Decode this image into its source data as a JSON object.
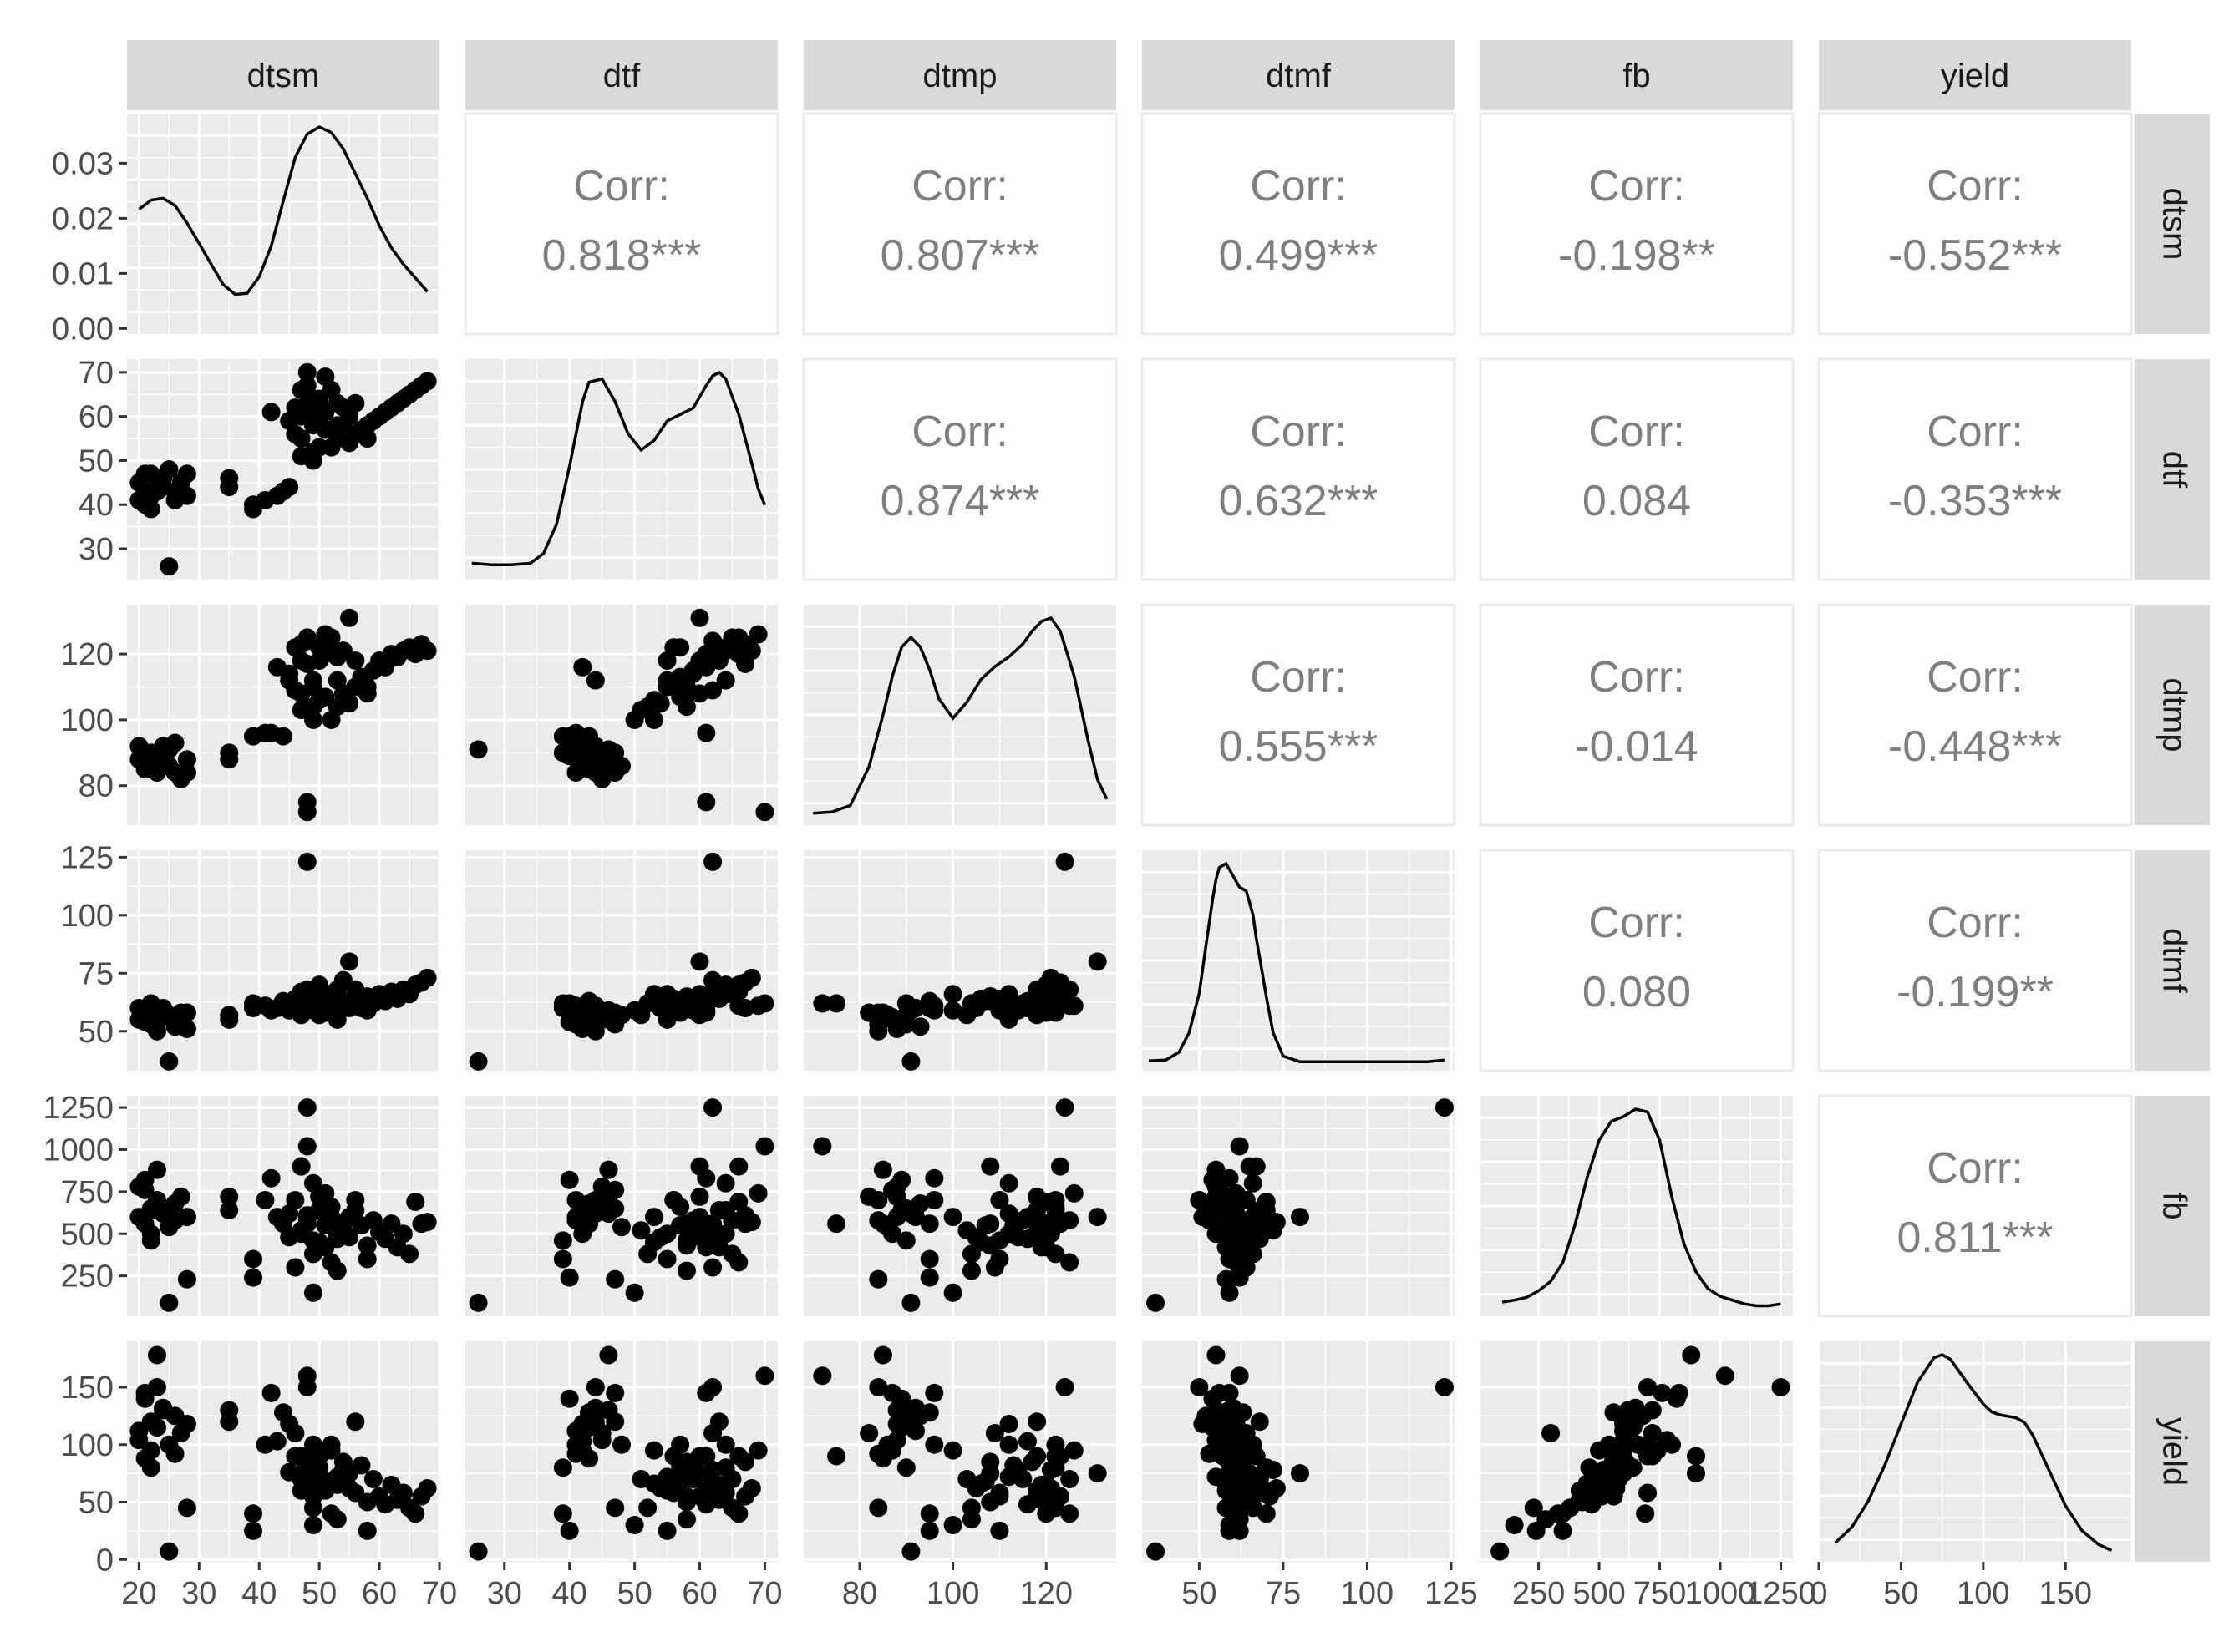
{
  "chart_data": {
    "type": "scatter",
    "subtype": "pairs-matrix",
    "variables": [
      "dtsm",
      "dtf",
      "dtmp",
      "dtmf",
      "fb",
      "yield"
    ],
    "panel_background": "#ebebeb",
    "strip_background": "#d9d9d9",
    "point_color": "#000000",
    "corr_text_color": "#7f7f7f",
    "corr_label": "Corr:",
    "correlations": [
      {
        "row": "dtsm",
        "col": "dtf",
        "text": "0.818***"
      },
      {
        "row": "dtsm",
        "col": "dtmp",
        "text": "0.807***"
      },
      {
        "row": "dtsm",
        "col": "dtmf",
        "text": "0.499***"
      },
      {
        "row": "dtsm",
        "col": "fb",
        "text": "-0.198**"
      },
      {
        "row": "dtsm",
        "col": "yield",
        "text": "-0.552***"
      },
      {
        "row": "dtf",
        "col": "dtmp",
        "text": "0.874***"
      },
      {
        "row": "dtf",
        "col": "dtmf",
        "text": "0.632***"
      },
      {
        "row": "dtf",
        "col": "fb",
        "text": "0.084"
      },
      {
        "row": "dtf",
        "col": "yield",
        "text": "-0.353***"
      },
      {
        "row": "dtmp",
        "col": "dtmf",
        "text": "0.555***"
      },
      {
        "row": "dtmp",
        "col": "fb",
        "text": "-0.014"
      },
      {
        "row": "dtmp",
        "col": "yield",
        "text": "-0.448***"
      },
      {
        "row": "dtmf",
        "col": "fb",
        "text": "0.080"
      },
      {
        "row": "dtmf",
        "col": "yield",
        "text": "-0.199**"
      },
      {
        "row": "fb",
        "col": "yield",
        "text": "0.811***"
      }
    ],
    "x_axes": [
      {
        "var": "dtsm",
        "lim": [
          18,
          70
        ],
        "ticks": [
          20,
          30,
          40,
          50,
          60,
          70
        ]
      },
      {
        "var": "dtf",
        "lim": [
          24,
          72
        ],
        "ticks": [
          30,
          40,
          50,
          60,
          70
        ]
      },
      {
        "var": "dtmp",
        "lim": [
          68,
          135
        ],
        "ticks": [
          80,
          100,
          120
        ]
      },
      {
        "var": "dtmf",
        "lim": [
          33,
          126
        ],
        "ticks": [
          50,
          75,
          100,
          125
        ]
      },
      {
        "var": "fb",
        "lim": [
          10,
          1300
        ],
        "ticks": [
          250,
          500,
          750,
          1000,
          1250
        ]
      },
      {
        "var": "yield",
        "lim": [
          0,
          190
        ],
        "ticks": [
          0,
          50,
          100,
          150
        ]
      }
    ],
    "y_axes": [
      {
        "var": "dtsm",
        "lim": [
          -0.001,
          0.039
        ],
        "ticks": [
          0.0,
          0.01,
          0.02,
          0.03
        ],
        "tick_labels": [
          "0.00",
          "0.01",
          "0.02",
          "0.03"
        ]
      },
      {
        "var": "dtf",
        "lim": [
          23,
          73
        ],
        "ticks": [
          30,
          40,
          50,
          60,
          70
        ]
      },
      {
        "var": "dtmp",
        "lim": [
          68,
          135
        ],
        "ticks": [
          80,
          100,
          120
        ]
      },
      {
        "var": "dtmf",
        "lim": [
          33,
          128
        ],
        "ticks": [
          50,
          75,
          100,
          125
        ]
      },
      {
        "var": "fb",
        "lim": [
          10,
          1320
        ],
        "ticks": [
          250,
          500,
          750,
          1000,
          1250
        ]
      },
      {
        "var": "yield",
        "lim": [
          -2,
          190
        ],
        "ticks": [
          0,
          50,
          100,
          150
        ]
      }
    ],
    "densities": [
      {
        "var": "dtsm",
        "x": [
          20,
          22,
          24,
          26,
          28,
          30,
          32,
          34,
          36,
          38,
          40,
          42,
          44,
          46,
          48,
          50,
          52,
          54,
          56,
          58,
          60,
          62,
          64,
          66,
          68
        ],
        "y": [
          0.0215,
          0.0232,
          0.0235,
          0.0222,
          0.019,
          0.0153,
          0.0115,
          0.0078,
          0.006,
          0.0062,
          0.0092,
          0.0148,
          0.023,
          0.031,
          0.0352,
          0.0365,
          0.0355,
          0.0325,
          0.028,
          0.0235,
          0.0185,
          0.0145,
          0.0115,
          0.009,
          0.0065
        ]
      },
      {
        "var": "dtf",
        "x": [
          25,
          28,
          31,
          34,
          36,
          38,
          40,
          42,
          43,
          45,
          47,
          49,
          51,
          53,
          55,
          57,
          59,
          61,
          62,
          63,
          64,
          66,
          68,
          69,
          70
        ],
        "y": [
          0.003,
          0.0025,
          0.0025,
          0.003,
          0.006,
          0.015,
          0.033,
          0.053,
          0.059,
          0.06,
          0.053,
          0.043,
          0.038,
          0.041,
          0.047,
          0.049,
          0.051,
          0.058,
          0.061,
          0.062,
          0.06,
          0.049,
          0.034,
          0.026,
          0.021
        ]
      },
      {
        "var": "dtmp",
        "x": [
          70,
          74,
          78,
          82,
          85,
          87,
          89,
          91,
          93,
          95,
          97,
          100,
          103,
          106,
          109,
          112,
          115,
          117,
          119,
          121,
          123,
          126,
          129,
          131,
          133
        ],
        "y": [
          0.0008,
          0.001,
          0.002,
          0.008,
          0.016,
          0.022,
          0.0265,
          0.028,
          0.0265,
          0.023,
          0.0185,
          0.0155,
          0.018,
          0.0215,
          0.0235,
          0.025,
          0.027,
          0.029,
          0.0305,
          0.031,
          0.029,
          0.022,
          0.012,
          0.006,
          0.003
        ]
      },
      {
        "var": "dtmf",
        "x": [
          35,
          40,
          44,
          47,
          50,
          52,
          54,
          55,
          56,
          58,
          60,
          62,
          64,
          66,
          67,
          68,
          70,
          72,
          75,
          80,
          90,
          100,
          110,
          118,
          123
        ],
        "y": [
          0.0008,
          0.001,
          0.003,
          0.008,
          0.018,
          0.03,
          0.042,
          0.047,
          0.05,
          0.051,
          0.048,
          0.045,
          0.044,
          0.038,
          0.032,
          0.027,
          0.017,
          0.008,
          0.002,
          0.0006,
          0.0006,
          0.0006,
          0.0006,
          0.0006,
          0.001
        ]
      },
      {
        "var": "fb",
        "x": [
          100,
          150,
          200,
          250,
          300,
          350,
          400,
          450,
          500,
          550,
          600,
          650,
          700,
          750,
          800,
          850,
          900,
          950,
          1000,
          1050,
          1100,
          1150,
          1200,
          1250
        ],
        "y": [
          8e-05,
          0.0001,
          0.00013,
          0.0002,
          0.0003,
          0.0005,
          0.0009,
          0.0014,
          0.0018,
          0.002,
          0.00205,
          0.00213,
          0.0021,
          0.0018,
          0.0012,
          0.0007,
          0.0004,
          0.00022,
          0.00014,
          0.0001,
          6e-05,
          4e-05,
          4e-05,
          6e-05
        ]
      },
      {
        "var": "yield",
        "x": [
          10,
          20,
          30,
          40,
          50,
          60,
          70,
          75,
          80,
          90,
          100,
          105,
          110,
          115,
          120,
          125,
          130,
          140,
          150,
          160,
          170,
          178
        ],
        "y": [
          0.0008,
          0.0018,
          0.0035,
          0.0058,
          0.0085,
          0.0112,
          0.0128,
          0.013,
          0.0127,
          0.0112,
          0.0098,
          0.0093,
          0.0091,
          0.009,
          0.0089,
          0.0086,
          0.0078,
          0.0055,
          0.0032,
          0.0016,
          0.0007,
          0.0003
        ]
      }
    ],
    "observations": [
      {
        "dtsm": 20,
        "dtf": 45,
        "dtmp": 88,
        "dtmf": 55,
        "fb": 780,
        "yield": 104
      },
      {
        "dtsm": 21,
        "dtf": 43,
        "dtmp": 85,
        "dtmf": 58,
        "fb": 560,
        "yield": 88
      },
      {
        "dtsm": 22,
        "dtf": 47,
        "dtmp": 90,
        "dtmf": 53,
        "fb": 650,
        "yield": 120
      },
      {
        "dtsm": 20,
        "dtf": 41,
        "dtmp": 92,
        "dtmf": 60,
        "fb": 600,
        "yield": 112
      },
      {
        "dtsm": 23,
        "dtf": 44,
        "dtmp": 84,
        "dtmf": 50,
        "fb": 700,
        "yield": 150
      },
      {
        "dtsm": 22,
        "dtf": 42,
        "dtmp": 87,
        "dtmf": 56,
        "fb": 500,
        "yield": 95
      },
      {
        "dtsm": 24,
        "dtf": 46,
        "dtmp": 91,
        "dtmf": 59,
        "fb": 620,
        "yield": 130
      },
      {
        "dtsm": 21,
        "dtf": 40,
        "dtmp": 89,
        "dtmf": 54,
        "fb": 820,
        "yield": 140
      },
      {
        "dtsm": 25,
        "dtf": 48,
        "dtmp": 86,
        "dtmf": 57,
        "fb": 540,
        "yield": 100
      },
      {
        "dtsm": 26,
        "dtf": 43,
        "dtmp": 93,
        "dtmf": 52,
        "fb": 680,
        "yield": 125
      },
      {
        "dtsm": 27,
        "dtf": 45,
        "dtmp": 82,
        "dtmf": 58,
        "fb": 720,
        "yield": 110
      },
      {
        "dtsm": 22,
        "dtf": 39,
        "dtmp": 90,
        "dtmf": 62,
        "fb": 460,
        "yield": 80
      },
      {
        "dtsm": 23,
        "dtf": 46,
        "dtmp": 85,
        "dtmf": 55,
        "fb": 880,
        "yield": 178
      },
      {
        "dtsm": 28,
        "dtf": 42,
        "dtmp": 88,
        "dtmf": 51,
        "fb": 600,
        "yield": 118
      },
      {
        "dtsm": 24,
        "dtf": 44,
        "dtmp": 92,
        "dtmf": 60,
        "fb": 650,
        "yield": 132
      },
      {
        "dtsm": 21,
        "dtf": 47,
        "dtmp": 87,
        "dtmf": 56,
        "fb": 760,
        "yield": 145
      },
      {
        "dtsm": 26,
        "dtf": 41,
        "dtmp": 84,
        "dtmf": 53,
        "fb": 580,
        "yield": 92
      },
      {
        "dtsm": 25,
        "dtf": 26,
        "dtmp": 91,
        "dtmf": 37,
        "fb": 90,
        "yield": 7
      },
      {
        "dtsm": 28,
        "dtf": 47,
        "dtmp": 84,
        "dtmf": 58,
        "fb": 230,
        "yield": 45
      },
      {
        "dtsm": 23,
        "dtf": 43,
        "dtmp": 89,
        "dtmf": 54,
        "fb": 640,
        "yield": 115
      },
      {
        "dtsm": 35,
        "dtf": 46,
        "dtmp": 88,
        "dtmf": 55,
        "fb": 720,
        "yield": 130
      },
      {
        "dtsm": 35,
        "dtf": 44,
        "dtmp": 90,
        "dtmf": 57,
        "fb": 640,
        "yield": 120
      },
      {
        "dtsm": 39,
        "dtf": 39,
        "dtmp": 95,
        "dtmf": 60,
        "fb": 350,
        "yield": 40
      },
      {
        "dtsm": 39,
        "dtf": 40,
        "dtmp": 95,
        "dtmf": 62,
        "fb": 240,
        "yield": 25
      },
      {
        "dtsm": 41,
        "dtf": 41,
        "dtmp": 96,
        "dtmf": 61,
        "fb": 700,
        "yield": 100
      },
      {
        "dtsm": 42,
        "dtf": 61,
        "dtmp": 96,
        "dtmf": 59,
        "fb": 830,
        "yield": 145
      },
      {
        "dtsm": 43,
        "dtf": 42,
        "dtmp": 116,
        "dtmf": 60,
        "fb": 600,
        "yield": 103
      },
      {
        "dtsm": 44,
        "dtf": 43,
        "dtmp": 95,
        "dtmf": 63,
        "fb": 560,
        "yield": 128
      },
      {
        "dtsm": 45,
        "dtf": 44,
        "dtmp": 112,
        "dtmf": 61,
        "fb": 620,
        "yield": 118
      },
      {
        "dtsm": 46,
        "dtf": 56,
        "dtmp": 122,
        "dtmf": 64,
        "fb": 700,
        "yield": 90
      },
      {
        "dtsm": 47,
        "dtf": 60,
        "dtmp": 108,
        "dtmf": 65,
        "fb": 900,
        "yield": 75
      },
      {
        "dtsm": 48,
        "dtf": 70,
        "dtmp": 72,
        "dtmf": 62,
        "fb": 1020,
        "yield": 160
      },
      {
        "dtsm": 48,
        "dtf": 62,
        "dtmp": 124,
        "dtmf": 123,
        "fb": 1250,
        "yield": 150
      },
      {
        "dtsm": 47,
        "dtf": 55,
        "dtmp": 118,
        "dtmf": 66,
        "fb": 500,
        "yield": 60
      },
      {
        "dtsm": 48,
        "dtf": 65,
        "dtmp": 125,
        "dtmf": 68,
        "fb": 580,
        "yield": 70
      },
      {
        "dtsm": 49,
        "dtf": 58,
        "dtmp": 110,
        "dtmf": 60,
        "fb": 460,
        "yield": 55
      },
      {
        "dtsm": 49,
        "dtf": 52,
        "dtmp": 104,
        "dtmf": 62,
        "fb": 380,
        "yield": 45
      },
      {
        "dtsm": 50,
        "dtf": 60,
        "dtmp": 118,
        "dtmf": 57,
        "fb": 720,
        "yield": 90
      },
      {
        "dtsm": 50,
        "dtf": 64,
        "dtmp": 122,
        "dtmf": 70,
        "fb": 640,
        "yield": 80
      },
      {
        "dtsm": 51,
        "dtf": 57,
        "dtmp": 107,
        "dtmf": 63,
        "fb": 550,
        "yield": 68
      },
      {
        "dtsm": 51,
        "dtf": 61,
        "dtmp": 120,
        "dtmf": 58,
        "fb": 420,
        "yield": 60
      },
      {
        "dtsm": 52,
        "dtf": 53,
        "dtmp": 100,
        "dtmf": 66,
        "fb": 600,
        "yield": 95
      },
      {
        "dtsm": 52,
        "dtf": 66,
        "dtmp": 125,
        "dtmf": 61,
        "fb": 330,
        "yield": 40
      },
      {
        "dtsm": 53,
        "dtf": 55,
        "dtmp": 112,
        "dtmf": 55,
        "fb": 500,
        "yield": 72
      },
      {
        "dtsm": 53,
        "dtf": 63,
        "dtmp": 119,
        "dtmf": 68,
        "fb": 470,
        "yield": 65
      },
      {
        "dtsm": 54,
        "dtf": 58,
        "dtmp": 108,
        "dtmf": 63,
        "fb": 560,
        "yield": 85
      },
      {
        "dtsm": 54,
        "dtf": 62,
        "dtmp": 121,
        "dtmf": 72,
        "fb": 520,
        "yield": 78
      },
      {
        "dtsm": 55,
        "dtf": 54,
        "dtmp": 105,
        "dtmf": 60,
        "fb": 480,
        "yield": 62
      },
      {
        "dtsm": 55,
        "dtf": 60,
        "dtmp": 131,
        "dtmf": 80,
        "fb": 600,
        "yield": 75
      },
      {
        "dtsm": 56,
        "dtf": 56,
        "dtmp": 110,
        "dtmf": 64,
        "fb": 700,
        "yield": 58
      },
      {
        "dtsm": 57,
        "dtf": 57,
        "dtmp": 113,
        "dtmf": 60,
        "fb": 550,
        "yield": 82
      },
      {
        "dtsm": 58,
        "dtf": 58,
        "dtmp": 108,
        "dtmf": 65,
        "fb": 430,
        "yield": 50
      },
      {
        "dtsm": 59,
        "dtf": 59,
        "dtmp": 115,
        "dtmf": 62,
        "fb": 580,
        "yield": 70
      },
      {
        "dtsm": 60,
        "dtf": 60,
        "dtmp": 118,
        "dtmf": 66,
        "fb": 510,
        "yield": 55
      },
      {
        "dtsm": 61,
        "dtf": 61,
        "dtmp": 116,
        "dtmf": 63,
        "fb": 470,
        "yield": 48
      },
      {
        "dtsm": 62,
        "dtf": 62,
        "dtmp": 120,
        "dtmf": 67,
        "fb": 560,
        "yield": 65
      },
      {
        "dtsm": 63,
        "dtf": 63,
        "dtmp": 119,
        "dtmf": 64,
        "fb": 420,
        "yield": 52
      },
      {
        "dtsm": 64,
        "dtf": 64,
        "dtmp": 121,
        "dtmf": 68,
        "fb": 500,
        "yield": 58
      },
      {
        "dtsm": 65,
        "dtf": 65,
        "dtmp": 122,
        "dtmf": 66,
        "fb": 380,
        "yield": 45
      },
      {
        "dtsm": 66,
        "dtf": 66,
        "dtmp": 120,
        "dtmf": 70,
        "fb": 690,
        "yield": 40
      },
      {
        "dtsm": 67,
        "dtf": 67,
        "dtmp": 123,
        "dtmf": 71,
        "fb": 560,
        "yield": 55
      },
      {
        "dtsm": 68,
        "dtf": 68,
        "dtmp": 121,
        "dtmf": 73,
        "fb": 570,
        "yield": 62
      },
      {
        "dtsm": 48,
        "dtf": 61,
        "dtmp": 75,
        "dtmf": 62,
        "fb": 560,
        "yield": 90
      },
      {
        "dtsm": 49,
        "dtf": 50,
        "dtmp": 100,
        "dtmf": 59,
        "fb": 150,
        "yield": 30
      },
      {
        "dtsm": 52,
        "dtf": 57,
        "dtmp": 122,
        "dtmf": 58,
        "fb": 660,
        "yield": 100
      },
      {
        "dtsm": 46,
        "dtf": 62,
        "dtmp": 109,
        "dtmf": 64,
        "fb": 300,
        "yield": 110
      },
      {
        "dtsm": 47,
        "dtf": 51,
        "dtmp": 103,
        "dtmf": 57,
        "fb": 520,
        "yield": 70
      },
      {
        "dtsm": 48,
        "dtf": 67,
        "dtmp": 117,
        "dtmf": 60,
        "fb": 610,
        "yield": 85
      },
      {
        "dtsm": 50,
        "dtf": 53,
        "dtmp": 106,
        "dtmf": 64,
        "fb": 450,
        "yield": 66
      },
      {
        "dtsm": 51,
        "dtf": 69,
        "dtmp": 126,
        "dtmf": 61,
        "fb": 740,
        "yield": 95
      },
      {
        "dtsm": 45,
        "dtf": 59,
        "dtmp": 114,
        "dtmf": 59,
        "fb": 480,
        "yield": 76
      },
      {
        "dtsm": 49,
        "dtf": 64,
        "dtmp": 112,
        "dtmf": 66,
        "fb": 800,
        "yield": 100
      },
      {
        "dtsm": 53,
        "dtf": 58,
        "dtmp": 104,
        "dtmf": 62,
        "fb": 280,
        "yield": 35
      },
      {
        "dtsm": 56,
        "dtf": 63,
        "dtmp": 118,
        "dtmf": 68,
        "fb": 640,
        "yield": 120
      },
      {
        "dtsm": 47,
        "dtf": 66,
        "dtmp": 123,
        "dtmf": 67,
        "fb": 900,
        "yield": 90
      },
      {
        "dtsm": 58,
        "dtf": 55,
        "dtmp": 110,
        "dtmf": 59,
        "fb": 350,
        "yield": 25
      }
    ]
  }
}
